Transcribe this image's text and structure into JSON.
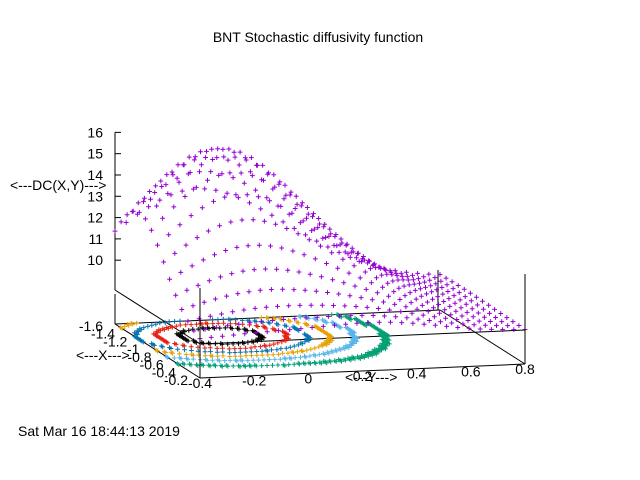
{
  "chart_data": {
    "type": "scatter",
    "plot_style": "3d-surface-points-with-contours",
    "title": "BNT Stochastic diffusivity function",
    "xlabel": "<---X--->",
    "ylabel": "<---Y--->",
    "zlabel": "<---DC(X,Y)--->",
    "x_ticks": [
      "-1.6",
      "-1.4",
      "-1.2",
      "-1",
      "-0.8",
      "-0.6",
      "-0.4",
      "-0.2"
    ],
    "y_ticks": [
      "-0.4",
      "-0.2",
      "0",
      "0.2",
      "0.4",
      "0.6",
      "0.8"
    ],
    "z_ticks": [
      "10",
      "11",
      "12",
      "13",
      "14",
      "15",
      "16"
    ],
    "xlim": [
      -1.6,
      -0.2
    ],
    "ylim": [
      -0.4,
      0.8
    ],
    "zlim": [
      8.6,
      16
    ],
    "surface_grid": {
      "x_count": 15,
      "y_count": 30
    },
    "surface_z_range": [
      8.6,
      15.8
    ],
    "surface_peak": {
      "x": -1.2,
      "y": -0.1,
      "z": 15.8
    },
    "contour_levels": [
      10,
      11,
      12,
      13,
      14,
      15
    ],
    "series": [
      {
        "color": "#9400d3",
        "role": "surface"
      },
      {
        "color": "#009e73",
        "role": "contour"
      },
      {
        "color": "#56b4e9",
        "role": "contour"
      },
      {
        "color": "#e69f00",
        "role": "contour"
      },
      {
        "color": "#0072b2",
        "role": "contour"
      },
      {
        "color": "#e51e10",
        "role": "contour"
      },
      {
        "color": "#000000",
        "role": "contour"
      }
    ],
    "grid": false,
    "legend": "none"
  },
  "timestamp": "Sat Mar 16 18:44:13 2019"
}
